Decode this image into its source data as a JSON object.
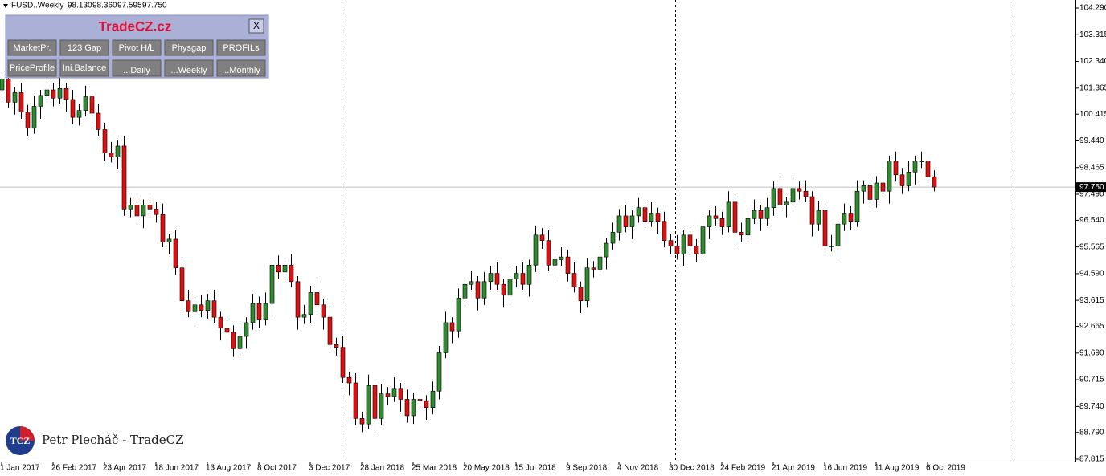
{
  "header": {
    "symbol": "FUSD..Weekly",
    "ohlc": [
      "98.130",
      "98.360",
      "97.595",
      "97.750"
    ]
  },
  "panel": {
    "title": "TradeCZ.cz",
    "close": "X",
    "buttons": [
      "MarketPr.",
      "123 Gap",
      "Pivot H/L",
      "Physgap",
      "PROFILs",
      "PriceProfile",
      "Ini.Balance",
      "...Daily",
      "...Weekly",
      "...Monthly"
    ]
  },
  "watermark": {
    "logo": "TCZ",
    "text": "Petr Plecháč - TradeCZ"
  },
  "chart_data": {
    "type": "candlestick",
    "categories": [
      "1 Jan 2017",
      null,
      null,
      null,
      null,
      null,
      null,
      null,
      "26 Feb 2017",
      null,
      null,
      null,
      null,
      null,
      null,
      null,
      "23 Apr 2017",
      null,
      null,
      null,
      null,
      null,
      null,
      null,
      "18 Jun 2017",
      null,
      null,
      null,
      null,
      null,
      null,
      null,
      "13 Aug 2017",
      null,
      null,
      null,
      null,
      null,
      null,
      null,
      "8 Oct 2017",
      null,
      null,
      null,
      null,
      null,
      null,
      null,
      "3 Dec 2017",
      null,
      null,
      null,
      null,
      null,
      null,
      null,
      "28 Jan 2018",
      null,
      null,
      null,
      null,
      null,
      null,
      null,
      "25 Mar 2018",
      null,
      null,
      null,
      null,
      null,
      null,
      null,
      "20 May 2018",
      null,
      null,
      null,
      null,
      null,
      null,
      null,
      "15 Jul 2018",
      null,
      null,
      null,
      null,
      null,
      null,
      null,
      "9 Sep 2018",
      null,
      null,
      null,
      null,
      null,
      null,
      null,
      "4 Nov 2018",
      null,
      null,
      null,
      null,
      null,
      null,
      null,
      "30 Dec 2018",
      null,
      null,
      null,
      null,
      null,
      null,
      null,
      "24 Feb 2019",
      null,
      null,
      null,
      null,
      null,
      null,
      null,
      "21 Apr 2019",
      null,
      null,
      null,
      null,
      null,
      null,
      null,
      "16 Jun 2019",
      null,
      null,
      null,
      null,
      null,
      null,
      null,
      "11 Aug 2019",
      null,
      null,
      null,
      null,
      null,
      null,
      null,
      "6 Oct 2019",
      null
    ],
    "open": [
      101.3,
      101.7,
      100.85,
      101.2,
      100.5,
      99.9,
      100.7,
      101.1,
      101.3,
      101.0,
      101.35,
      100.95,
      100.3,
      100.55,
      101.05,
      100.45,
      99.85,
      99.0,
      98.85,
      99.25,
      96.95,
      97.1,
      96.7,
      97.1,
      96.95,
      96.75,
      95.75,
      95.85,
      94.8,
      93.6,
      93.2,
      93.45,
      93.25,
      93.6,
      93.0,
      92.6,
      92.45,
      91.85,
      92.3,
      92.8,
      93.5,
      92.9,
      93.5,
      94.9,
      94.65,
      94.9,
      94.3,
      93.0,
      93.1,
      93.9,
      93.45,
      93.0,
      92.0,
      91.9,
      90.8,
      90.6,
      89.3,
      89.1,
      90.5,
      89.3,
      90.2,
      90.1,
      90.4,
      90.0,
      89.4,
      90.0,
      89.95,
      89.7,
      90.3,
      91.7,
      92.8,
      92.5,
      93.7,
      94.2,
      94.3,
      93.7,
      94.3,
      94.6,
      94.2,
      93.8,
      94.4,
      94.6,
      94.2,
      94.9,
      96.0,
      95.8,
      94.9,
      95.1,
      95.2,
      94.6,
      94.1,
      93.6,
      94.8,
      94.75,
      95.2,
      95.7,
      96.1,
      96.7,
      96.3,
      96.7,
      97.0,
      96.5,
      96.8,
      96.5,
      95.8,
      95.6,
      95.3,
      96.0,
      95.6,
      95.3,
      96.3,
      96.7,
      96.6,
      96.3,
      97.2,
      96.1,
      96.0,
      96.6,
      96.9,
      96.6,
      97.0,
      97.7,
      97.1,
      97.2,
      97.7,
      97.6,
      97.4,
      96.4,
      96.9,
      95.6,
      95.6,
      96.4,
      96.8,
      96.5,
      97.6,
      97.8,
      97.3,
      97.9,
      97.6,
      98.7,
      98.2,
      97.8,
      98.3,
      98.7,
      98.7,
      98.13
    ],
    "high": [
      101.95,
      102.1,
      101.4,
      101.55,
      100.75,
      101.1,
      101.3,
      101.65,
      101.55,
      101.75,
      101.55,
      101.3,
      100.8,
      101.45,
      101.25,
      100.8,
      100.1,
      99.4,
      99.45,
      99.6,
      97.35,
      97.5,
      97.3,
      97.45,
      97.2,
      97.15,
      96.05,
      96.2,
      95.05,
      94.0,
      93.65,
      93.8,
      93.85,
      94.0,
      93.2,
      92.95,
      92.7,
      92.7,
      93.0,
      93.85,
      93.75,
      93.9,
      95.1,
      95.25,
      95.15,
      95.3,
      94.5,
      93.45,
      94.15,
      94.3,
      93.65,
      93.35,
      92.25,
      92.3,
      91.0,
      90.95,
      89.55,
      90.9,
      90.7,
      90.55,
      90.45,
      90.8,
      90.6,
      90.35,
      90.25,
      90.4,
      90.15,
      90.65,
      91.95,
      93.2,
      93.0,
      94.05,
      94.45,
      94.7,
      94.5,
      94.65,
      94.85,
      95.0,
      94.4,
      94.75,
      94.85,
      95.0,
      95.1,
      96.35,
      96.25,
      96.2,
      95.3,
      95.55,
      95.45,
      95.0,
      94.3,
      95.15,
      95.05,
      95.6,
      95.9,
      96.45,
      96.95,
      97.1,
      96.9,
      97.35,
      97.25,
      97.2,
      97.0,
      96.85,
      96.05,
      96.0,
      96.2,
      96.35,
      95.85,
      96.7,
      96.9,
      97.05,
      96.85,
      97.6,
      97.4,
      96.45,
      96.85,
      97.3,
      97.1,
      97.35,
      97.95,
      98.1,
      97.4,
      98.05,
      97.95,
      98.0,
      97.6,
      97.25,
      97.15,
      96.0,
      96.6,
      97.15,
      97.05,
      98.0,
      98.0,
      98.15,
      98.15,
      98.3,
      98.9,
      99.05,
      98.45,
      98.7,
      98.9,
      99.05,
      98.95,
      98.36
    ],
    "low": [
      101.0,
      100.65,
      100.4,
      100.25,
      99.6,
      99.7,
      100.25,
      100.85,
      100.7,
      100.8,
      100.5,
      100.05,
      100.0,
      100.35,
      100.0,
      99.6,
      98.7,
      98.65,
      98.4,
      96.7,
      96.65,
      96.5,
      96.25,
      96.7,
      96.45,
      95.55,
      95.3,
      94.55,
      93.3,
      93.0,
      92.75,
      93.0,
      92.95,
      92.8,
      92.15,
      92.2,
      91.55,
      91.65,
      91.85,
      92.55,
      92.6,
      92.7,
      93.05,
      94.4,
      94.35,
      94.1,
      92.55,
      92.75,
      92.8,
      93.25,
      92.55,
      91.75,
      91.6,
      90.6,
      90.15,
      89.05,
      88.8,
      88.9,
      88.85,
      89.05,
      89.8,
      89.9,
      89.55,
      89.15,
      89.1,
      89.75,
      89.25,
      89.45,
      90.0,
      91.5,
      92.05,
      92.25,
      93.4,
      94.0,
      93.25,
      93.45,
      94.0,
      94.0,
      93.35,
      93.55,
      94.1,
      94.0,
      93.75,
      94.65,
      95.5,
      94.7,
      94.45,
      94.85,
      94.3,
      93.9,
      93.15,
      93.35,
      94.45,
      94.55,
      94.75,
      95.45,
      95.8,
      96.1,
      95.85,
      96.45,
      96.2,
      96.3,
      96.05,
      95.55,
      95.3,
      95.1,
      94.85,
      95.35,
      95.0,
      95.1,
      95.85,
      96.35,
      96.0,
      96.1,
      95.65,
      95.75,
      95.7,
      96.4,
      96.15,
      96.35,
      96.7,
      96.9,
      96.65,
      96.95,
      97.3,
      97.2,
      95.95,
      96.15,
      95.3,
      95.4,
      95.15,
      96.15,
      96.2,
      96.3,
      97.15,
      97.05,
      97.0,
      97.4,
      97.15,
      97.95,
      97.5,
      97.6,
      97.85,
      98.45,
      97.8,
      97.595
    ],
    "close": [
      101.7,
      100.85,
      101.2,
      100.5,
      99.9,
      100.7,
      101.1,
      101.3,
      101.0,
      101.35,
      100.95,
      100.3,
      100.55,
      101.05,
      100.45,
      99.85,
      99.0,
      98.85,
      99.25,
      96.95,
      97.1,
      96.7,
      97.1,
      96.95,
      96.75,
      95.75,
      95.85,
      94.8,
      93.6,
      93.2,
      93.45,
      93.25,
      93.6,
      93.0,
      92.6,
      92.45,
      91.85,
      92.3,
      92.8,
      93.5,
      92.9,
      93.5,
      94.9,
      94.65,
      94.9,
      94.3,
      93.0,
      93.1,
      93.9,
      93.45,
      93.0,
      92.0,
      91.9,
      90.8,
      90.6,
      89.3,
      89.1,
      90.5,
      89.3,
      90.2,
      90.1,
      90.4,
      90.0,
      89.4,
      90.0,
      89.95,
      89.7,
      90.3,
      91.7,
      92.8,
      92.5,
      93.7,
      94.2,
      94.3,
      93.7,
      94.3,
      94.6,
      94.2,
      93.8,
      94.4,
      94.6,
      94.2,
      94.9,
      96.0,
      95.8,
      94.9,
      95.1,
      95.2,
      94.6,
      94.1,
      93.6,
      94.8,
      94.75,
      95.2,
      95.7,
      96.1,
      96.7,
      96.3,
      96.7,
      97.0,
      96.5,
      96.8,
      96.5,
      95.8,
      95.6,
      95.3,
      96.0,
      95.6,
      95.3,
      96.3,
      96.7,
      96.6,
      96.3,
      97.2,
      96.1,
      96.0,
      96.6,
      96.9,
      96.6,
      97.0,
      97.7,
      97.1,
      97.2,
      97.7,
      97.6,
      97.4,
      96.4,
      96.9,
      95.6,
      95.6,
      96.4,
      96.8,
      96.5,
      97.6,
      97.8,
      97.3,
      97.9,
      97.6,
      98.7,
      98.2,
      97.8,
      98.3,
      98.7,
      98.7,
      98.13,
      97.75
    ],
    "up_color": "#2e8b2e",
    "down_color": "#e01010",
    "ylim": [
      87.727,
      104.584
    ],
    "yticks": [
      {
        "value": 104.29,
        "label": "104.290"
      },
      103.315,
      {
        "value": 102.34,
        "label": "102.340"
      },
      101.365,
      100.415,
      {
        "value": 99.44,
        "label": "99.440"
      },
      98.465,
      {
        "value": 97.49,
        "label": "97.490"
      },
      {
        "value": 96.54,
        "label": "96.540"
      },
      95.565,
      {
        "value": 94.59,
        "label": "94.590"
      },
      93.615,
      92.665,
      {
        "value": 91.69,
        "label": "91.690"
      },
      90.715,
      {
        "value": 89.74,
        "label": "89.740"
      },
      {
        "value": 88.79,
        "label": "88.790"
      },
      87.815
    ],
    "price_line": {
      "value": 97.75,
      "label": "97.750"
    }
  }
}
